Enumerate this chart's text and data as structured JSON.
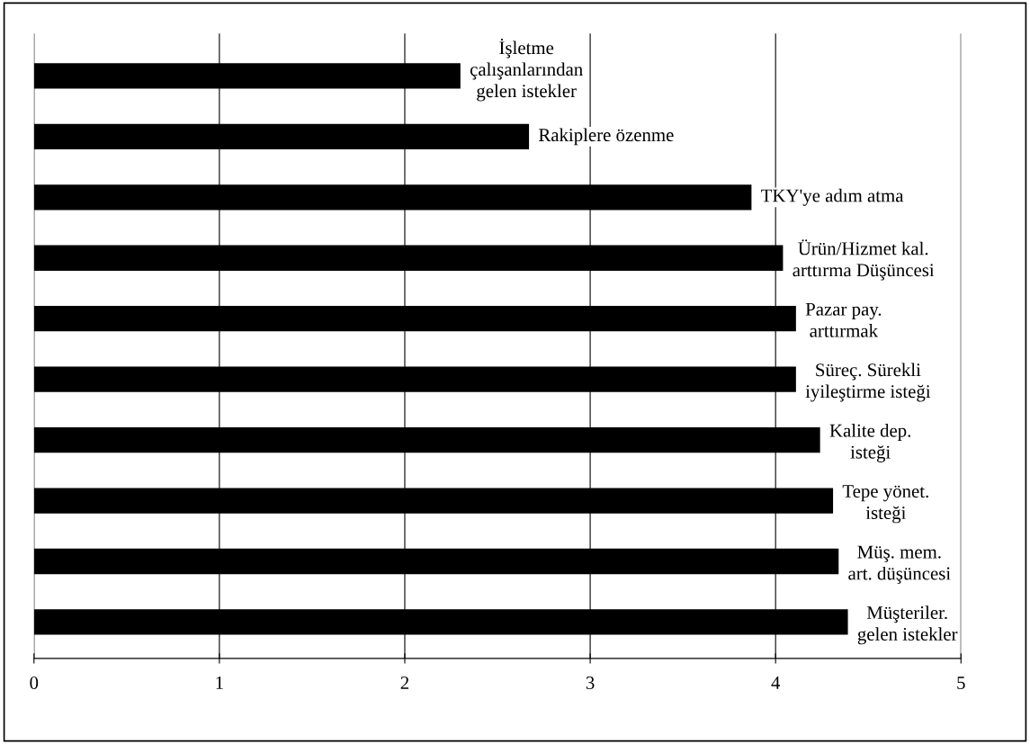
{
  "chart_data": {
    "type": "bar",
    "orientation": "horizontal",
    "categories": [
      "İşletme\nçalışanlarından\ngelen istekler",
      "Rakiplere özenme",
      "TKY'ye adım atma",
      "Ürün/Hizmet kal.\narttırma Düşüncesi",
      "Pazar pay.\narttırmak",
      "Süreç. Sürekli\niyileştirme isteği",
      "Kalite dep.\nisteği",
      "Tepe yönet.\nisteği",
      "Müş. mem.\nart. düşüncesi",
      "Müşteriler.\ngelen istekler"
    ],
    "values": [
      2.3,
      2.67,
      3.87,
      4.04,
      4.11,
      4.11,
      4.24,
      4.31,
      4.34,
      4.39
    ],
    "color": "#000000",
    "xlim": [
      0,
      5
    ],
    "xticks": [
      0,
      1,
      2,
      3,
      4,
      5
    ],
    "grid": "x",
    "tick_labels": "x"
  }
}
